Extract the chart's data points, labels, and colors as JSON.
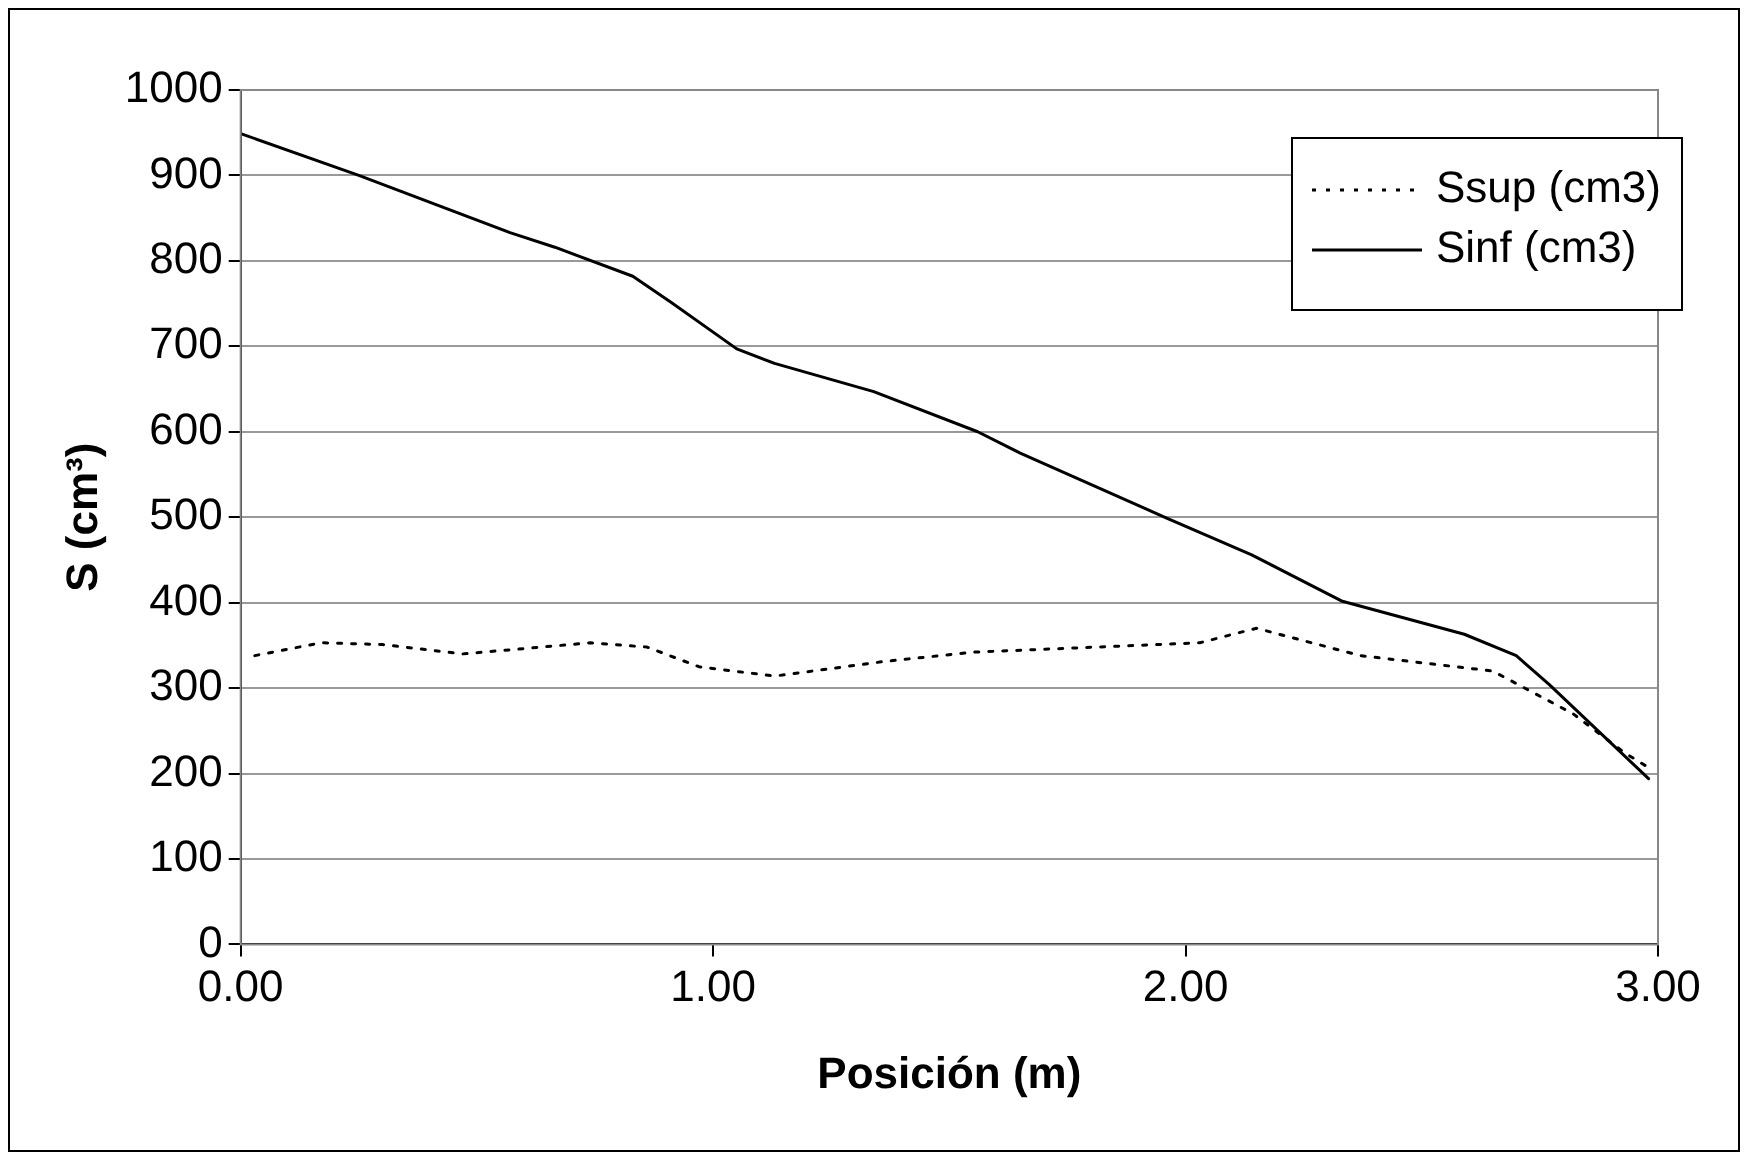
{
  "chart_data": {
    "type": "line",
    "xlabel": "Posición (m)",
    "ylabel": "S (cm³)",
    "xlim": [
      0,
      3
    ],
    "xticks": [
      {
        "value": 0,
        "label": "0.00"
      },
      {
        "value": 1,
        "label": "1.00"
      },
      {
        "value": 2,
        "label": "2.00"
      },
      {
        "value": 3,
        "label": "3.00"
      }
    ],
    "ylim": [
      0,
      1000
    ],
    "yticks": [
      0,
      100,
      200,
      300,
      400,
      500,
      600,
      700,
      800,
      900,
      1000
    ],
    "grid": "y",
    "legend": "top right",
    "marker": "none",
    "series": [
      {
        "name": "Ssup (cm3)",
        "color": "#000000",
        "line_style": "dotted",
        "x": [
          0.03,
          0.17,
          0.3,
          0.47,
          0.74,
          0.86,
          0.97,
          1.13,
          1.36,
          1.55,
          2.03,
          2.15,
          2.37,
          2.65,
          2.82,
          2.93,
          2.98
        ],
        "values": [
          338,
          353,
          351,
          340,
          353,
          348,
          325,
          314,
          331,
          342,
          353,
          370,
          338,
          320,
          270,
          224,
          207
        ]
      },
      {
        "name": "Sinf (cm3)",
        "color": "#000000",
        "line_style": "solid",
        "x": [
          0,
          0.25,
          0.57,
          0.665,
          0.83,
          0.91,
          1.05,
          1.13,
          1.34,
          1.56,
          1.65,
          1.96,
          2.14,
          2.33,
          2.59,
          2.7,
          2.77,
          2.98
        ],
        "values": [
          949,
          900,
          833,
          816,
          782,
          752,
          697,
          680,
          647,
          600,
          575,
          499,
          456,
          402,
          363,
          338,
          304,
          194
        ]
      }
    ]
  }
}
